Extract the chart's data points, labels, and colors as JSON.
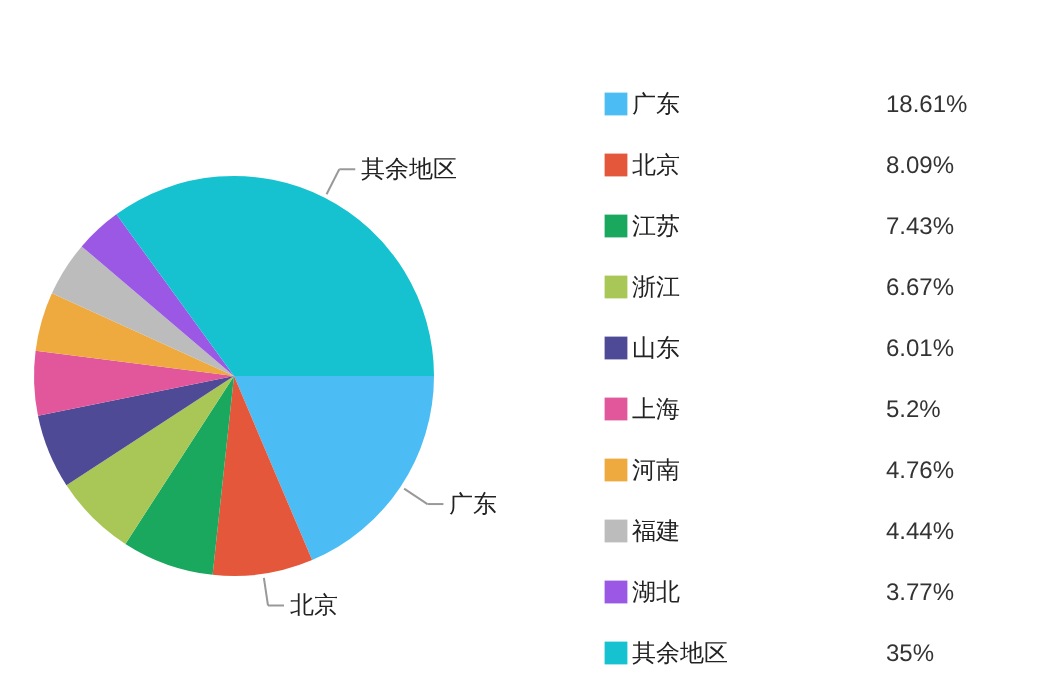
{
  "chart_data": {
    "type": "pie",
    "categories": [
      "广东",
      "北京",
      "江苏",
      "浙江",
      "山东",
      "上海",
      "河南",
      "福建",
      "湖北",
      "其余地区"
    ],
    "values": [
      18.61,
      8.09,
      7.43,
      6.67,
      6.01,
      5.2,
      4.76,
      4.44,
      3.77,
      35
    ],
    "value_labels": [
      "18.61%",
      "8.09%",
      "7.43%",
      "6.67%",
      "6.01%",
      "5.2%",
      "4.76%",
      "4.44%",
      "3.77%",
      "35%"
    ],
    "colors": [
      "#4cbdf4",
      "#e4573a",
      "#1aa75e",
      "#a8c756",
      "#4f4a96",
      "#e2569b",
      "#eea93f",
      "#bcbcbc",
      "#9a58e5",
      "#16c2d0"
    ],
    "annotations": [
      {
        "text": "广东",
        "x": "广东"
      },
      {
        "text": "北京",
        "x": "北京"
      },
      {
        "text": "其余地区",
        "x": "其余地区"
      }
    ],
    "legend": "right"
  }
}
